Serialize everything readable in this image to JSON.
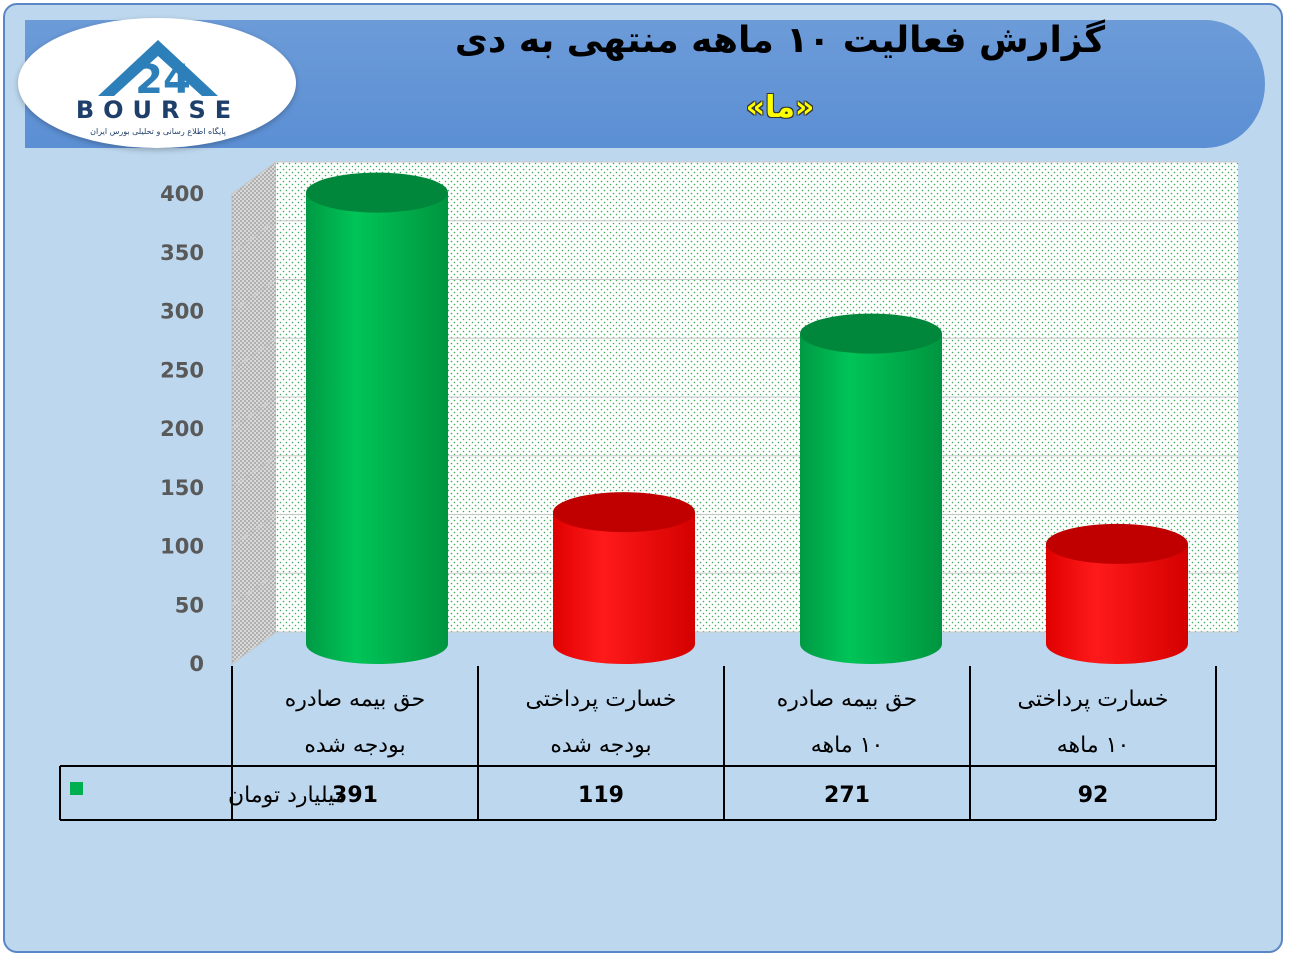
{
  "header": {
    "title": "گزارش فعالیت ۱۰ ماهه منتهی به دی",
    "subtitle": "«ما»"
  },
  "logo": {
    "wordmark": "BOURSE",
    "number": "24",
    "tagline": "پایگاه اطلاع رسانی و تحلیلی بورس ایران"
  },
  "colors": {
    "background": "#bdd7ee",
    "banner": "#5b8fd4",
    "green": "#00b050",
    "red": "#ff0000",
    "title_text": "#000000",
    "subtitle_text": "#ffff00"
  },
  "chart_data": {
    "type": "bar",
    "style": "3d-cylinder",
    "categories": [
      [
        "حق بیمه صادره",
        "بودجه شده"
      ],
      [
        "خسارت پرداختی",
        "بودجه شده"
      ],
      [
        "حق بیمه صادره",
        "۱۰ ماهه"
      ],
      [
        "خسارت پرداختی",
        "۱۰ ماهه"
      ]
    ],
    "series": [
      {
        "name": "میلیارد تومان",
        "values": [
          391,
          119,
          271,
          92
        ],
        "colors": [
          "#00b050",
          "#ff0000",
          "#00b050",
          "#ff0000"
        ]
      }
    ],
    "ylim": [
      0,
      400
    ],
    "yticks": [
      0,
      50,
      100,
      150,
      200,
      250,
      300,
      350,
      400
    ],
    "grid": true,
    "data_table": true
  }
}
